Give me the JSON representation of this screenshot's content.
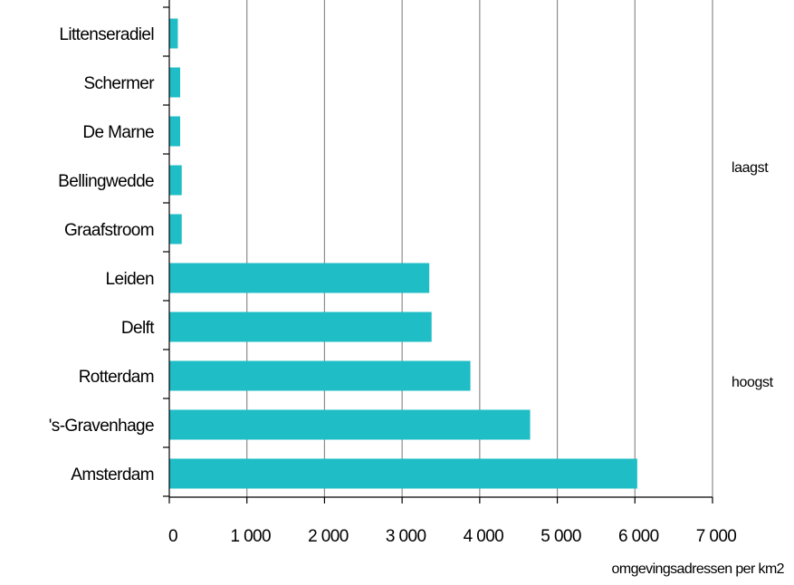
{
  "chart_data": {
    "type": "bar",
    "orientation": "horizontal",
    "categories": [
      "Littenseradiel",
      "Schermer",
      "De Marne",
      "Bellingwedde",
      "Graafstroom",
      "Leiden",
      "Delft",
      "Rotterdam",
      "'s-Gravenhage",
      "Amsterdam"
    ],
    "values": [
      110,
      140,
      140,
      160,
      160,
      3350,
      3380,
      3880,
      4650,
      6030
    ],
    "xlabel": "omgevingsadressen per km2",
    "ylabel": "",
    "xlim": [
      0,
      7000
    ],
    "xticks": [
      0,
      1000,
      2000,
      3000,
      4000,
      5000,
      6000,
      7000
    ],
    "xtick_labels": [
      "0",
      "1 000",
      "2 000",
      "3 000",
      "4 000",
      "5 000",
      "6 000",
      "7 000"
    ],
    "grid": "vertical",
    "bar_color": "#1fbec6",
    "grid_color": "#8c8c8c",
    "group_labels": {
      "low": "laagst",
      "high": "hoogst"
    }
  }
}
